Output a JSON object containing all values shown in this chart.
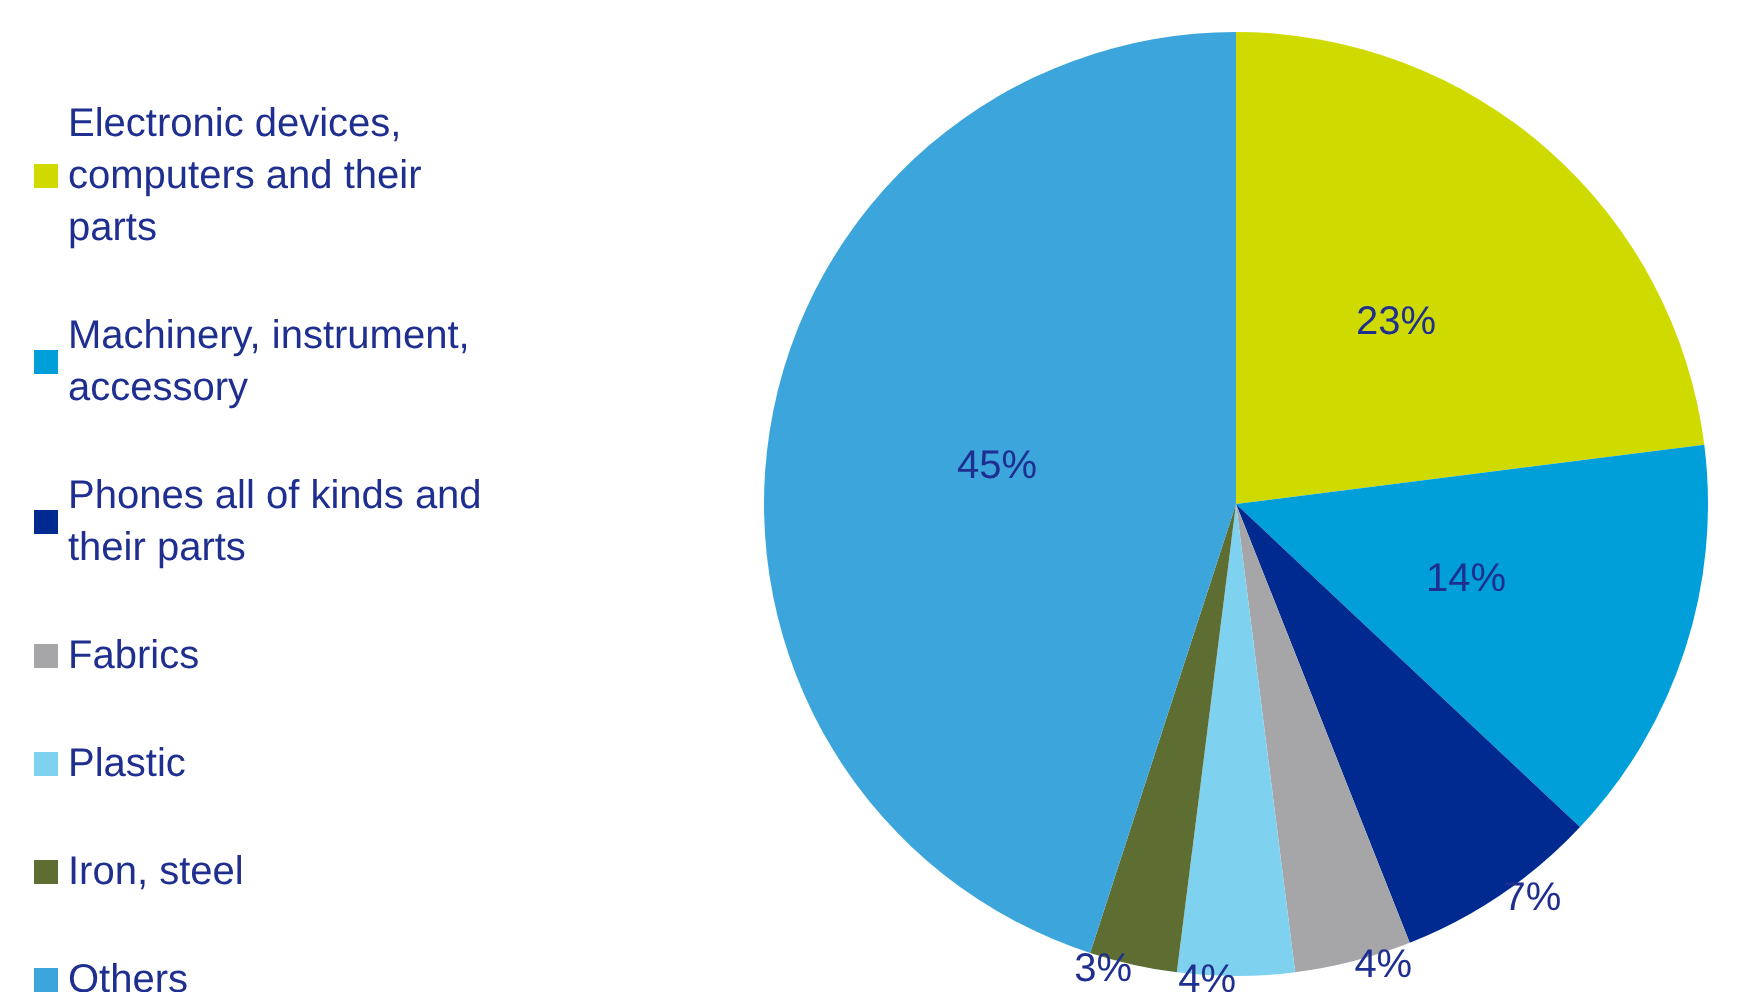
{
  "chart_data": {
    "type": "pie",
    "categories": [
      "Electronic devices, computers and their parts",
      "Machinery, instrument, accessory",
      "Phones all of kinds and their parts",
      "Fabrics",
      "Plastic",
      "Iron, steel",
      "Others"
    ],
    "values": [
      23,
      14,
      7,
      4,
      4,
      3,
      45
    ],
    "colors": [
      "#cfdb00",
      "#009fd9",
      "#002a8f",
      "#a6a6a9",
      "#7fd2ef",
      "#5e6d32",
      "#3ca5dc"
    ],
    "value_labels": [
      "23%",
      "14%",
      "7%",
      "4%",
      "4%",
      "3%",
      "45%"
    ],
    "legend": "left"
  }
}
